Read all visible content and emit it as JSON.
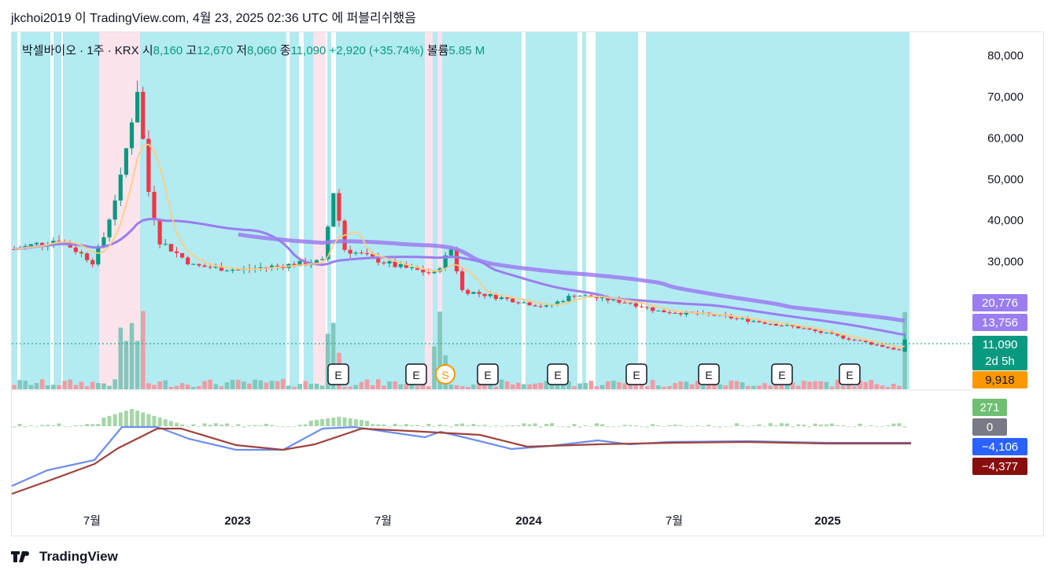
{
  "header": {
    "text": "jkchoi2019 이 TradingView.com, 4월 23, 2025 02:36 UTC 에 퍼블리쉬했음"
  },
  "legend": {
    "symbol": "박셀바이오 · 1주 · KRX",
    "open_label": "시",
    "open": "8,160",
    "high_label": "고",
    "high": "12,670",
    "low_label": "저",
    "low": "8,060",
    "close_label": "종",
    "close": "11,090",
    "change": "+2,920 (+35.74%)",
    "volume_label": "볼륨",
    "volume": "5.85 M"
  },
  "price_axis": [
    "80,000",
    "70,000",
    "60,000",
    "50,000",
    "40,000",
    "30,000"
  ],
  "price_badges": [
    {
      "text": "20,776",
      "color": "#9b7df0"
    },
    {
      "text": "13,756",
      "color": "#9b7df0"
    },
    {
      "text": "11,090",
      "sub": "2d 5h",
      "color": "#089981"
    },
    {
      "text": "9,918",
      "color": "#ff9800",
      "text_color": "#131722"
    }
  ],
  "macd_badges": [
    {
      "text": "271",
      "color": "#6fbf73"
    },
    {
      "text": "0",
      "color": "#787b86"
    },
    {
      "text": "−4,106",
      "color": "#2962ff"
    },
    {
      "text": "−4,377",
      "color": "#880e0e"
    }
  ],
  "time_axis": [
    "7월",
    "2023",
    "7월",
    "2024",
    "7월",
    "2025"
  ],
  "event_markers": [
    "E",
    "E",
    "S",
    "E",
    "E",
    "E",
    "E",
    "E",
    "E"
  ],
  "colors": {
    "up": "#089981",
    "down": "#f23645",
    "bg_cyan": "#b2ebf2",
    "bg_pink": "#fce4ec",
    "ma_purple": "#9b7df0",
    "ma_orange": "#ffcc80",
    "macd": "#6c8ef0",
    "signal": "#a0423c"
  },
  "footer": {
    "brand": "TradingView"
  },
  "chart_data": {
    "type": "candlestick",
    "interval": "1주",
    "x_range": [
      "2022-03",
      "2025-04"
    ],
    "ylim": [
      0,
      85000
    ],
    "x_ticks": [
      "7월",
      "2023",
      "7월",
      "2024",
      "7월",
      "2025"
    ],
    "y_ticks": [
      30000,
      40000,
      50000,
      60000,
      70000,
      80000
    ],
    "close_path": [
      [
        0,
        33000
      ],
      [
        8,
        35500
      ],
      [
        14,
        30000
      ],
      [
        16,
        36000
      ],
      [
        19,
        50000
      ],
      [
        22,
        72000
      ],
      [
        24,
        47000
      ],
      [
        26,
        35000
      ],
      [
        32,
        29000
      ],
      [
        40,
        28000
      ],
      [
        55,
        30000
      ],
      [
        57,
        47000
      ],
      [
        59,
        33000
      ],
      [
        68,
        29000
      ],
      [
        75,
        27000
      ],
      [
        78,
        33000
      ],
      [
        80,
        23000
      ],
      [
        84,
        22000
      ],
      [
        95,
        19000
      ],
      [
        100,
        22000
      ],
      [
        110,
        20000
      ],
      [
        115,
        18000
      ],
      [
        125,
        17000
      ],
      [
        140,
        14000
      ],
      [
        150,
        11000
      ],
      [
        158,
        8500
      ],
      [
        159,
        11090
      ]
    ],
    "last": {
      "open": 8160,
      "high": 12670,
      "low": 8060,
      "close": 11090,
      "change": 2920,
      "change_pct": 35.74
    },
    "moving_averages": [
      {
        "value": 20776
      },
      {
        "value": 13756
      },
      {
        "value": 9918
      }
    ],
    "macd": {
      "histogram": 271,
      "zero": 0,
      "macd": -4106,
      "signal": -4377
    }
  }
}
